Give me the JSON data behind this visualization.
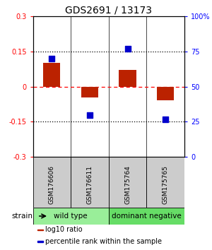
{
  "title": "GDS2691 / 13173",
  "samples": [
    "GSM176606",
    "GSM176611",
    "GSM175764",
    "GSM175765"
  ],
  "log10_ratio": [
    0.1,
    -0.045,
    0.07,
    -0.058
  ],
  "percentile_rank": [
    0.7,
    0.3,
    0.77,
    0.27
  ],
  "ylim_left": [
    -0.3,
    0.3
  ],
  "yticks_left": [
    -0.3,
    -0.15,
    0.0,
    0.15,
    0.3
  ],
  "ytick_labels_left": [
    "-0.3",
    "-0.15",
    "0",
    "0.15",
    "0.3"
  ],
  "yticks_right": [
    0.0,
    0.25,
    0.5,
    0.75,
    1.0
  ],
  "ytick_labels_right": [
    "0",
    "25",
    "50",
    "75",
    "100%"
  ],
  "bar_color": "#bb2200",
  "scatter_color": "#0000cc",
  "strain_groups": [
    {
      "label": "wild type",
      "indices": [
        0,
        1
      ],
      "color": "#99ee99"
    },
    {
      "label": "dominant negative",
      "indices": [
        2,
        3
      ],
      "color": "#66dd66"
    }
  ],
  "strain_label": "strain",
  "legend_items": [
    {
      "color": "#bb2200",
      "label": "log10 ratio"
    },
    {
      "color": "#0000cc",
      "label": "percentile rank within the sample"
    }
  ],
  "bar_width": 0.45,
  "scatter_size": 28,
  "title_fontsize": 10,
  "tick_fontsize": 7,
  "sample_fontsize": 6.5,
  "strain_fontsize": 7.5,
  "legend_fontsize": 7
}
